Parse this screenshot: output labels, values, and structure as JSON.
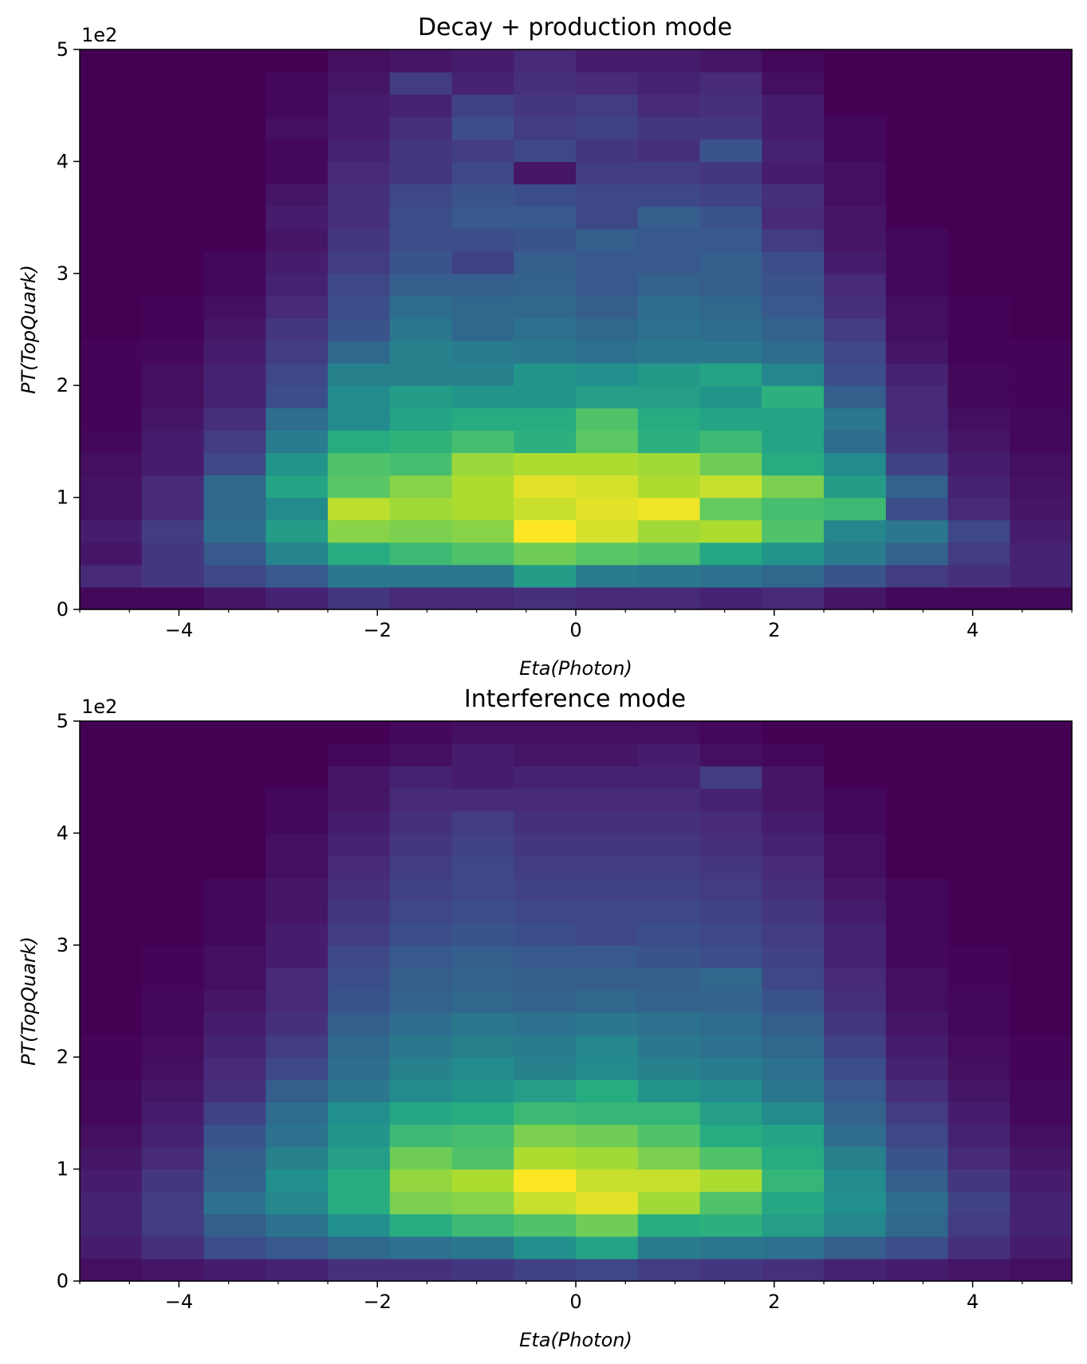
{
  "chart_data": [
    {
      "type": "heatmap",
      "title": "Decay + production mode",
      "xlabel": "Eta(Photon)",
      "ylabel": "PT(TopQuark)",
      "y_offset_label": "1e2",
      "colormap": "viridis",
      "xlim": [
        -5,
        5
      ],
      "ylim": [
        0,
        5
      ],
      "x_ticks": [
        -4,
        -2,
        0,
        2,
        4
      ],
      "x_tick_labels": [
        "−4",
        "−2",
        "0",
        "2",
        "4"
      ],
      "y_ticks": [
        0,
        1,
        2,
        3,
        4,
        5
      ],
      "y_tick_labels": [
        "0",
        "1",
        "2",
        "3",
        "4",
        "5"
      ],
      "x_bin_edges": [
        -5,
        -4.375,
        -3.75,
        -3.125,
        -2.5,
        -1.875,
        -1.25,
        -0.625,
        0,
        0.625,
        1.25,
        1.875,
        2.5,
        3.125,
        3.75,
        4.375,
        5
      ],
      "y_bin_edges": [
        0,
        0.2,
        0.4,
        0.6,
        0.8,
        1.0,
        1.2,
        1.4,
        1.6,
        1.8,
        2.0,
        2.2,
        2.4,
        2.6,
        2.8,
        3.0,
        3.2,
        3.4,
        3.6,
        3.8,
        4.0,
        4.2,
        4.4,
        4.6,
        4.8,
        5.0
      ],
      "z_range": [
        0,
        1
      ],
      "z_rows_bottom_to_top": [
        [
          0.02,
          0.02,
          0.06,
          0.1,
          0.16,
          0.12,
          0.12,
          0.14,
          0.12,
          0.12,
          0.1,
          0.12,
          0.06,
          0.02,
          0.02,
          0.02
        ],
        [
          0.12,
          0.16,
          0.22,
          0.28,
          0.4,
          0.4,
          0.4,
          0.55,
          0.42,
          0.4,
          0.38,
          0.34,
          0.26,
          0.18,
          0.14,
          0.1
        ],
        [
          0.06,
          0.16,
          0.28,
          0.45,
          0.62,
          0.68,
          0.72,
          0.78,
          0.74,
          0.72,
          0.6,
          0.52,
          0.42,
          0.32,
          0.18,
          0.1
        ],
        [
          0.08,
          0.18,
          0.36,
          0.55,
          0.82,
          0.8,
          0.82,
          1.0,
          0.94,
          0.86,
          0.88,
          0.72,
          0.46,
          0.4,
          0.22,
          0.08
        ],
        [
          0.05,
          0.12,
          0.34,
          0.48,
          0.9,
          0.86,
          0.88,
          0.92,
          0.96,
          0.98,
          0.76,
          0.7,
          0.68,
          0.24,
          0.12,
          0.06
        ],
        [
          0.05,
          0.12,
          0.34,
          0.58,
          0.74,
          0.82,
          0.88,
          0.96,
          0.94,
          0.88,
          0.92,
          0.8,
          0.55,
          0.32,
          0.1,
          0.05
        ],
        [
          0.04,
          0.08,
          0.22,
          0.52,
          0.72,
          0.7,
          0.85,
          0.88,
          0.88,
          0.86,
          0.78,
          0.62,
          0.48,
          0.2,
          0.08,
          0.04
        ],
        [
          0.02,
          0.08,
          0.18,
          0.42,
          0.62,
          0.65,
          0.7,
          0.64,
          0.75,
          0.64,
          0.68,
          0.58,
          0.36,
          0.14,
          0.06,
          0.02
        ],
        [
          0.01,
          0.06,
          0.14,
          0.36,
          0.48,
          0.58,
          0.62,
          0.62,
          0.72,
          0.62,
          0.58,
          0.58,
          0.4,
          0.12,
          0.04,
          0.02
        ],
        [
          0.01,
          0.04,
          0.1,
          0.24,
          0.48,
          0.55,
          0.52,
          0.52,
          0.56,
          0.56,
          0.52,
          0.64,
          0.3,
          0.12,
          0.02,
          0.01
        ],
        [
          0.01,
          0.04,
          0.1,
          0.22,
          0.44,
          0.44,
          0.44,
          0.52,
          0.5,
          0.54,
          0.58,
          0.46,
          0.24,
          0.1,
          0.02,
          0.01
        ],
        [
          0.01,
          0.02,
          0.08,
          0.18,
          0.34,
          0.44,
          0.42,
          0.4,
          0.38,
          0.4,
          0.4,
          0.36,
          0.22,
          0.06,
          0.01,
          0.01
        ],
        [
          0.0,
          0.01,
          0.06,
          0.16,
          0.26,
          0.4,
          0.34,
          0.38,
          0.34,
          0.38,
          0.36,
          0.32,
          0.18,
          0.04,
          0.01,
          0.0
        ],
        [
          0.0,
          0.01,
          0.04,
          0.12,
          0.24,
          0.36,
          0.34,
          0.34,
          0.3,
          0.36,
          0.34,
          0.28,
          0.14,
          0.04,
          0.01,
          0.0
        ],
        [
          0.0,
          0.0,
          0.02,
          0.1,
          0.22,
          0.3,
          0.3,
          0.32,
          0.28,
          0.32,
          0.3,
          0.26,
          0.12,
          0.02,
          0.0,
          0.0
        ],
        [
          0.0,
          0.0,
          0.02,
          0.08,
          0.18,
          0.26,
          0.2,
          0.3,
          0.28,
          0.28,
          0.3,
          0.24,
          0.08,
          0.02,
          0.0,
          0.0
        ],
        [
          0.0,
          0.0,
          0.0,
          0.06,
          0.16,
          0.24,
          0.24,
          0.26,
          0.3,
          0.28,
          0.28,
          0.18,
          0.06,
          0.02,
          0.0,
          0.0
        ],
        [
          0.0,
          0.0,
          0.0,
          0.08,
          0.14,
          0.24,
          0.28,
          0.28,
          0.22,
          0.3,
          0.26,
          0.12,
          0.06,
          0.0,
          0.0,
          0.0
        ],
        [
          0.0,
          0.0,
          0.0,
          0.06,
          0.14,
          0.22,
          0.26,
          0.24,
          0.22,
          0.22,
          0.2,
          0.14,
          0.04,
          0.0,
          0.0,
          0.0
        ],
        [
          0.0,
          0.0,
          0.0,
          0.02,
          0.12,
          0.16,
          0.22,
          0.06,
          0.18,
          0.18,
          0.16,
          0.08,
          0.04,
          0.0,
          0.0,
          0.0
        ],
        [
          0.0,
          0.0,
          0.0,
          0.02,
          0.1,
          0.16,
          0.18,
          0.22,
          0.16,
          0.14,
          0.26,
          0.1,
          0.02,
          0.0,
          0.0,
          0.0
        ],
        [
          0.0,
          0.0,
          0.0,
          0.04,
          0.08,
          0.14,
          0.24,
          0.18,
          0.2,
          0.16,
          0.16,
          0.08,
          0.02,
          0.0,
          0.0,
          0.0
        ],
        [
          0.0,
          0.0,
          0.0,
          0.02,
          0.08,
          0.1,
          0.2,
          0.16,
          0.18,
          0.12,
          0.14,
          0.08,
          0.0,
          0.0,
          0.0,
          0.0
        ],
        [
          0.0,
          0.0,
          0.0,
          0.02,
          0.06,
          0.18,
          0.1,
          0.14,
          0.12,
          0.1,
          0.12,
          0.04,
          0.0,
          0.0,
          0.0,
          0.0
        ],
        [
          0.0,
          0.0,
          0.0,
          0.0,
          0.04,
          0.06,
          0.08,
          0.12,
          0.08,
          0.08,
          0.06,
          0.02,
          0.0,
          0.0,
          0.0,
          0.0
        ]
      ]
    },
    {
      "type": "heatmap",
      "title": "Interference mode",
      "xlabel": "Eta(Photon)",
      "ylabel": "PT(TopQuark)",
      "y_offset_label": "1e2",
      "colormap": "viridis",
      "xlim": [
        -5,
        5
      ],
      "ylim": [
        0,
        5
      ],
      "x_ticks": [
        -4,
        -2,
        0,
        2,
        4
      ],
      "x_tick_labels": [
        "−4",
        "−2",
        "0",
        "2",
        "4"
      ],
      "y_ticks": [
        0,
        1,
        2,
        3,
        4,
        5
      ],
      "y_tick_labels": [
        "0",
        "1",
        "2",
        "3",
        "4",
        "5"
      ],
      "x_bin_edges": [
        -5,
        -4.375,
        -3.75,
        -3.125,
        -2.5,
        -1.875,
        -1.25,
        -0.625,
        0,
        0.625,
        1.25,
        1.875,
        2.5,
        3.125,
        3.75,
        4.375,
        5
      ],
      "y_bin_edges": [
        0,
        0.2,
        0.4,
        0.6,
        0.8,
        1.0,
        1.2,
        1.4,
        1.6,
        1.8,
        2.0,
        2.2,
        2.4,
        2.6,
        2.8,
        3.0,
        3.2,
        3.4,
        3.6,
        3.8,
        4.0,
        4.2,
        4.4,
        4.6,
        4.8,
        5.0
      ],
      "z_range": [
        0,
        1
      ],
      "z_rows_bottom_to_top": [
        [
          0.04,
          0.06,
          0.08,
          0.1,
          0.14,
          0.14,
          0.16,
          0.2,
          0.22,
          0.18,
          0.16,
          0.14,
          0.1,
          0.08,
          0.06,
          0.04
        ],
        [
          0.08,
          0.14,
          0.24,
          0.28,
          0.34,
          0.38,
          0.4,
          0.5,
          0.58,
          0.42,
          0.4,
          0.38,
          0.3,
          0.24,
          0.14,
          0.08
        ],
        [
          0.1,
          0.18,
          0.3,
          0.38,
          0.5,
          0.62,
          0.68,
          0.72,
          0.78,
          0.62,
          0.64,
          0.56,
          0.46,
          0.34,
          0.18,
          0.1
        ],
        [
          0.1,
          0.18,
          0.38,
          0.46,
          0.62,
          0.8,
          0.82,
          0.92,
          0.96,
          0.86,
          0.72,
          0.6,
          0.5,
          0.36,
          0.2,
          0.1
        ],
        [
          0.08,
          0.16,
          0.32,
          0.5,
          0.62,
          0.84,
          0.88,
          1.0,
          0.92,
          0.92,
          0.88,
          0.66,
          0.48,
          0.3,
          0.16,
          0.08
        ],
        [
          0.06,
          0.12,
          0.3,
          0.44,
          0.56,
          0.78,
          0.72,
          0.88,
          0.86,
          0.8,
          0.72,
          0.62,
          0.44,
          0.26,
          0.12,
          0.06
        ],
        [
          0.04,
          0.1,
          0.26,
          0.38,
          0.52,
          0.68,
          0.7,
          0.8,
          0.78,
          0.72,
          0.62,
          0.58,
          0.36,
          0.22,
          0.1,
          0.04
        ],
        [
          0.02,
          0.08,
          0.2,
          0.36,
          0.5,
          0.6,
          0.62,
          0.68,
          0.66,
          0.66,
          0.56,
          0.48,
          0.32,
          0.18,
          0.08,
          0.02
        ],
        [
          0.02,
          0.06,
          0.14,
          0.3,
          0.4,
          0.48,
          0.52,
          0.56,
          0.62,
          0.52,
          0.48,
          0.4,
          0.28,
          0.14,
          0.06,
          0.02
        ],
        [
          0.01,
          0.04,
          0.12,
          0.22,
          0.36,
          0.44,
          0.48,
          0.44,
          0.48,
          0.44,
          0.42,
          0.38,
          0.24,
          0.1,
          0.04,
          0.01
        ],
        [
          0.01,
          0.03,
          0.1,
          0.18,
          0.34,
          0.4,
          0.44,
          0.42,
          0.46,
          0.4,
          0.38,
          0.34,
          0.2,
          0.08,
          0.03,
          0.01
        ],
        [
          0.0,
          0.02,
          0.08,
          0.14,
          0.3,
          0.36,
          0.4,
          0.38,
          0.4,
          0.38,
          0.36,
          0.3,
          0.16,
          0.06,
          0.02,
          0.0
        ],
        [
          0.0,
          0.02,
          0.06,
          0.12,
          0.26,
          0.32,
          0.34,
          0.32,
          0.34,
          0.32,
          0.32,
          0.26,
          0.14,
          0.04,
          0.02,
          0.0
        ],
        [
          0.0,
          0.01,
          0.04,
          0.12,
          0.24,
          0.3,
          0.32,
          0.3,
          0.3,
          0.3,
          0.34,
          0.22,
          0.12,
          0.04,
          0.01,
          0.0
        ],
        [
          0.0,
          0.01,
          0.04,
          0.08,
          0.22,
          0.28,
          0.3,
          0.28,
          0.28,
          0.26,
          0.24,
          0.2,
          0.1,
          0.02,
          0.01,
          0.0
        ],
        [
          0.0,
          0.0,
          0.02,
          0.08,
          0.18,
          0.24,
          0.26,
          0.24,
          0.22,
          0.24,
          0.22,
          0.18,
          0.1,
          0.02,
          0.0,
          0.0
        ],
        [
          0.0,
          0.0,
          0.02,
          0.06,
          0.16,
          0.22,
          0.24,
          0.22,
          0.22,
          0.22,
          0.2,
          0.16,
          0.08,
          0.02,
          0.0,
          0.0
        ],
        [
          0.0,
          0.0,
          0.02,
          0.06,
          0.14,
          0.2,
          0.22,
          0.2,
          0.2,
          0.2,
          0.18,
          0.14,
          0.06,
          0.02,
          0.0,
          0.0
        ],
        [
          0.0,
          0.0,
          0.0,
          0.04,
          0.12,
          0.18,
          0.22,
          0.18,
          0.18,
          0.18,
          0.16,
          0.12,
          0.04,
          0.0,
          0.0,
          0.0
        ],
        [
          0.0,
          0.0,
          0.0,
          0.04,
          0.1,
          0.16,
          0.2,
          0.16,
          0.16,
          0.16,
          0.14,
          0.1,
          0.04,
          0.0,
          0.0,
          0.0
        ],
        [
          0.0,
          0.0,
          0.0,
          0.02,
          0.08,
          0.14,
          0.18,
          0.14,
          0.14,
          0.14,
          0.12,
          0.08,
          0.02,
          0.0,
          0.0,
          0.0
        ],
        [
          0.0,
          0.0,
          0.0,
          0.02,
          0.06,
          0.12,
          0.12,
          0.12,
          0.12,
          0.12,
          0.1,
          0.06,
          0.02,
          0.0,
          0.0,
          0.0
        ],
        [
          0.0,
          0.0,
          0.0,
          0.0,
          0.06,
          0.1,
          0.08,
          0.1,
          0.1,
          0.1,
          0.18,
          0.06,
          0.0,
          0.0,
          0.0,
          0.0
        ],
        [
          0.0,
          0.0,
          0.0,
          0.0,
          0.02,
          0.04,
          0.08,
          0.06,
          0.06,
          0.08,
          0.04,
          0.02,
          0.0,
          0.0,
          0.0,
          0.0
        ],
        [
          0.0,
          0.0,
          0.0,
          0.0,
          0.0,
          0.02,
          0.04,
          0.04,
          0.04,
          0.04,
          0.02,
          0.0,
          0.0,
          0.0,
          0.0,
          0.0
        ]
      ]
    }
  ]
}
